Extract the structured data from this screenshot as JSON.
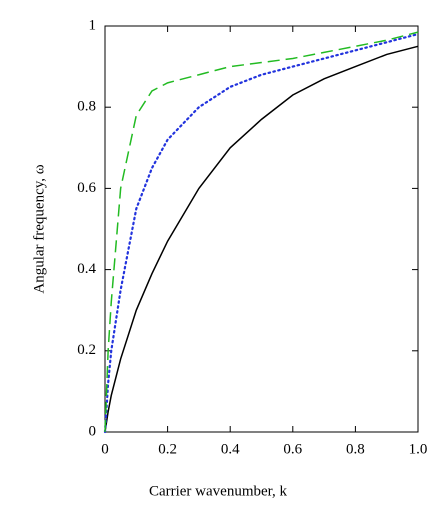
{
  "chart_data": {
    "type": "line",
    "xlabel": "Carrier wavenumber,  k",
    "ylabel": "Angular frequency,  ω",
    "x": [
      0,
      0.01,
      0.02,
      0.05,
      0.1,
      0.15,
      0.2,
      0.3,
      0.4,
      0.5,
      0.6,
      0.7,
      0.8,
      0.9,
      1.0
    ],
    "series": [
      {
        "color": "#000000",
        "dash": "solid",
        "values": [
          0,
          0.05,
          0.09,
          0.18,
          0.3,
          0.39,
          0.47,
          0.6,
          0.7,
          0.77,
          0.83,
          0.87,
          0.9,
          0.93,
          0.95
        ]
      },
      {
        "color": "#2233dd",
        "dash": "dotted",
        "values": [
          0,
          0.12,
          0.2,
          0.35,
          0.55,
          0.65,
          0.72,
          0.8,
          0.85,
          0.88,
          0.9,
          0.92,
          0.94,
          0.96,
          0.98
        ]
      },
      {
        "color": "#22bb22",
        "dash": "dashed",
        "values": [
          0,
          0.2,
          0.32,
          0.6,
          0.78,
          0.84,
          0.86,
          0.88,
          0.9,
          0.91,
          0.92,
          0.935,
          0.95,
          0.965,
          0.985
        ]
      }
    ],
    "xlim": [
      0,
      1
    ],
    "xticks": [
      0,
      0.2,
      0.4,
      0.6,
      0.8,
      {
        "value": 1,
        "label": "1.0"
      }
    ],
    "ylim": [
      0,
      1
    ],
    "yticks": [
      0,
      0.2,
      0.4,
      0.6,
      0.8,
      1
    ],
    "grid": false
  }
}
